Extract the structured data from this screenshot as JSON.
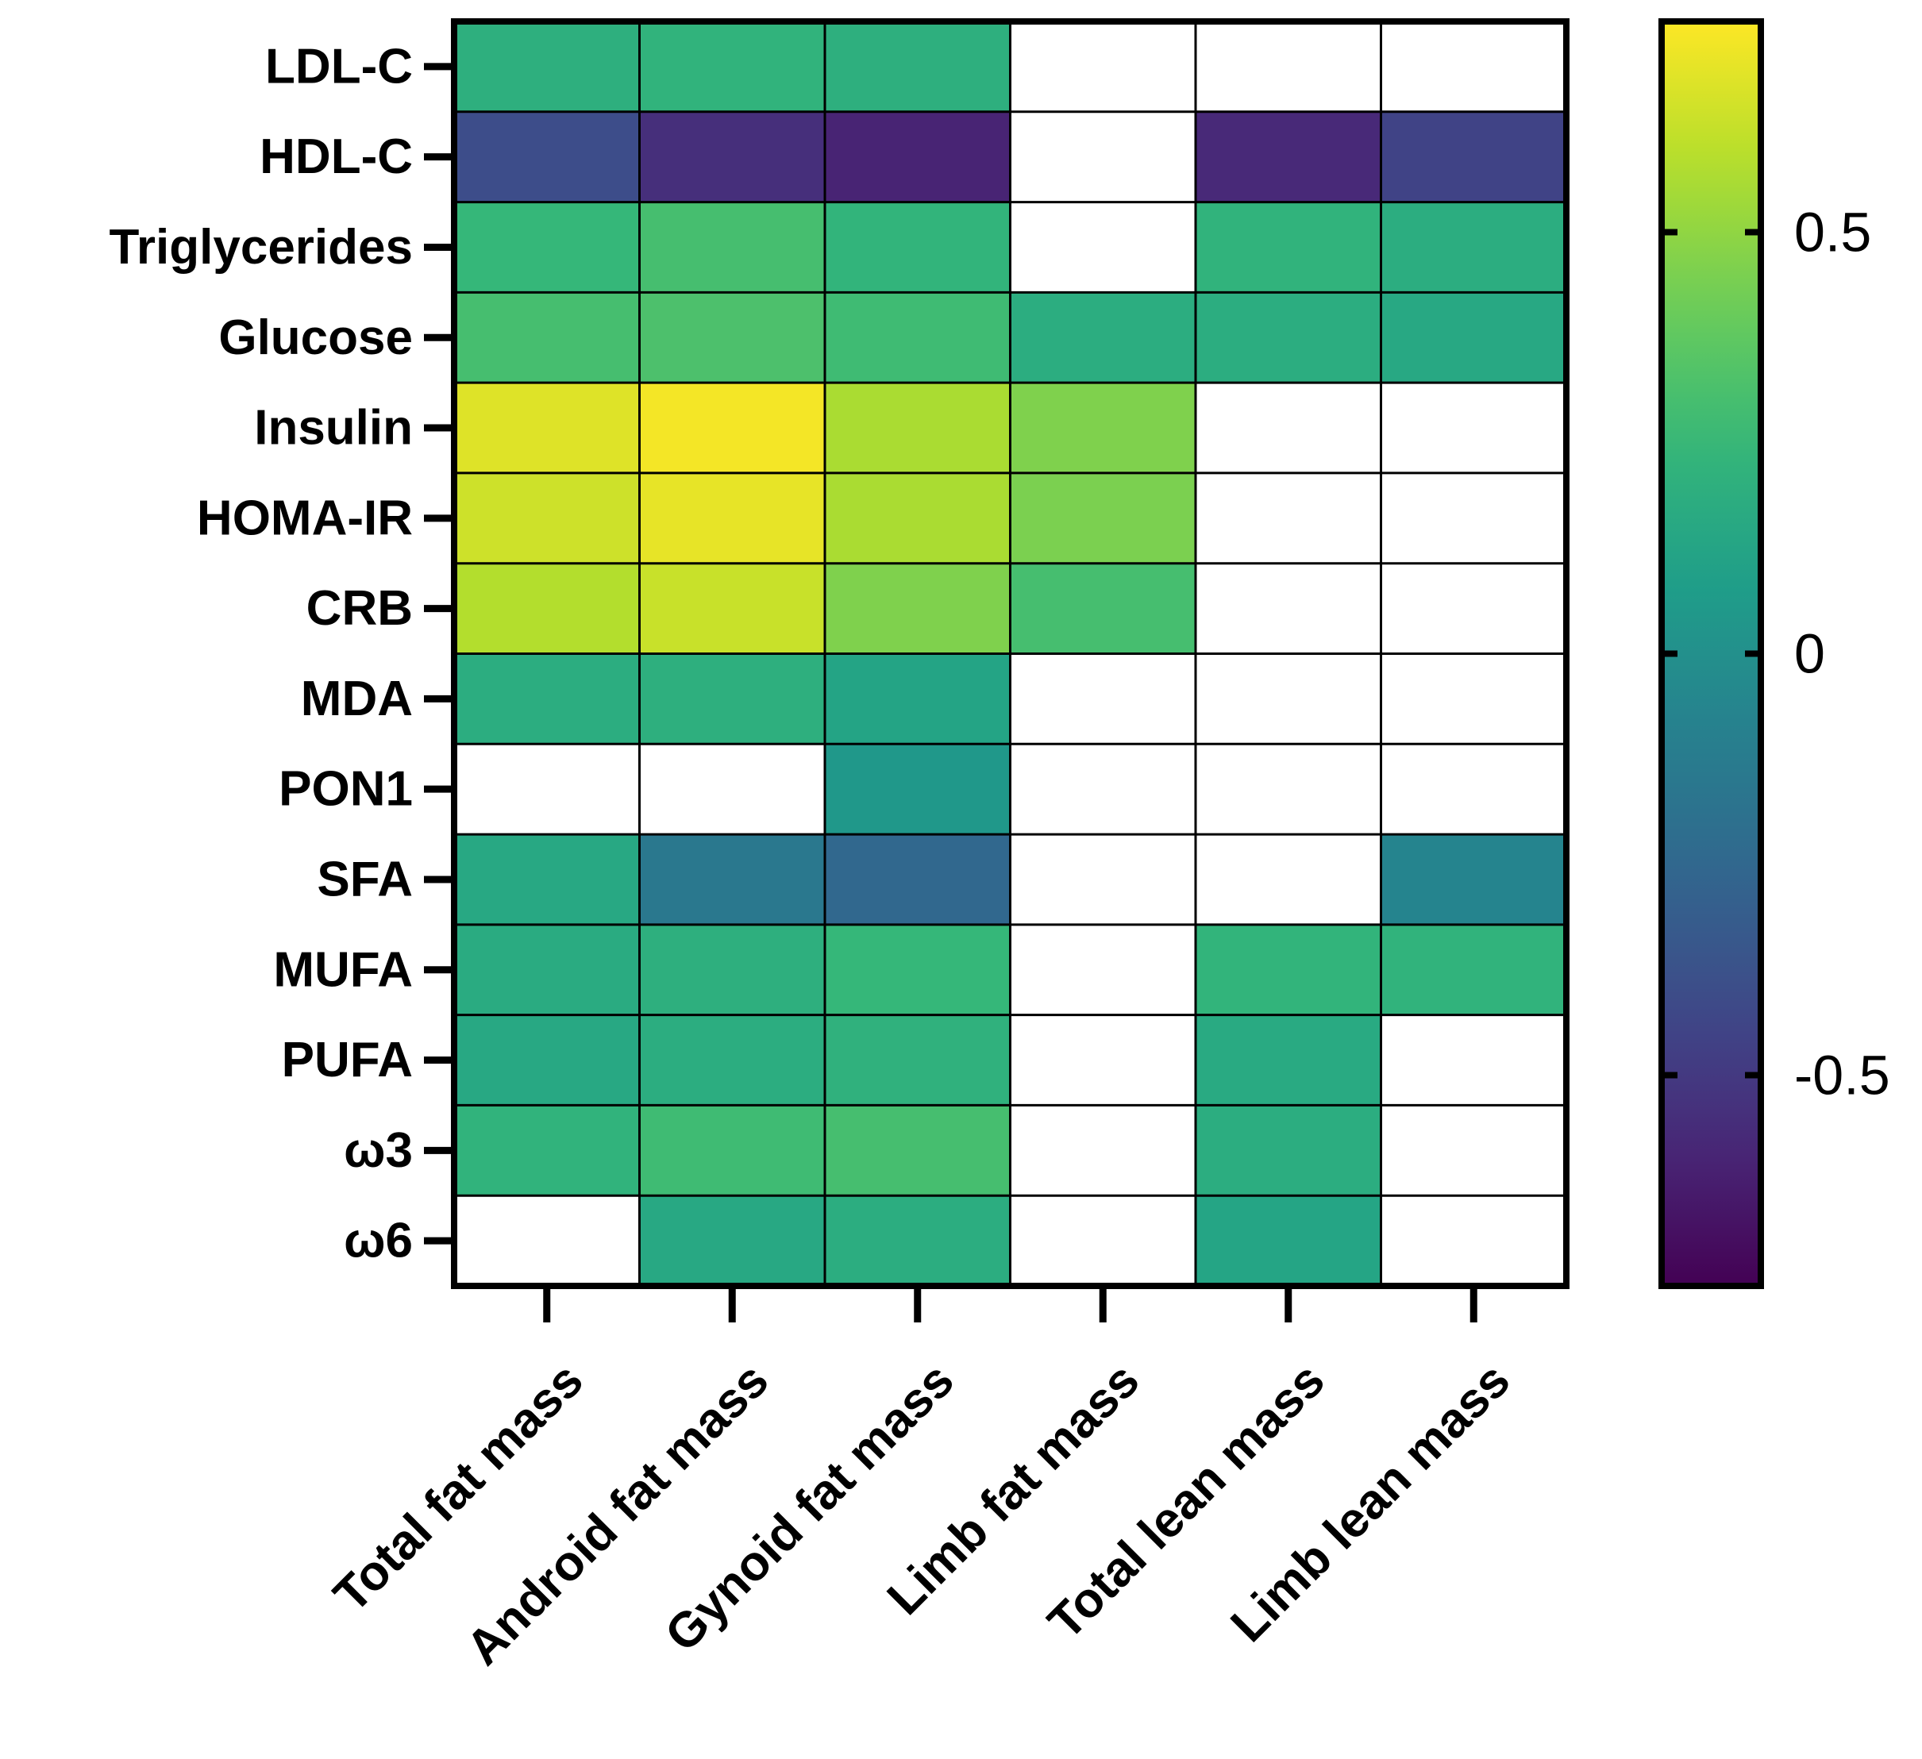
{
  "chart_data": {
    "type": "heatmap",
    "title": "",
    "rows": [
      "LDL-C",
      "HDL-C",
      "Triglycerides",
      "Glucose",
      "Insulin",
      "HOMA-IR",
      "CRB",
      "MDA",
      "PON1",
      "SFA",
      "MUFA",
      "PUFA",
      "ω3",
      "ω6"
    ],
    "columns": [
      "Total fat mass",
      "Android fat mass",
      "Gynoid fat mass",
      "Limb fat mass",
      "Total lean mass",
      "Limb lean mass"
    ],
    "values": [
      [
        0.2,
        0.22,
        0.2,
        null,
        null,
        null
      ],
      [
        -0.4,
        -0.55,
        -0.6,
        null,
        -0.58,
        -0.45
      ],
      [
        0.25,
        0.3,
        0.23,
        null,
        0.22,
        0.18
      ],
      [
        0.3,
        0.32,
        0.28,
        0.18,
        0.18,
        0.15
      ],
      [
        0.68,
        0.73,
        0.56,
        0.46,
        null,
        null
      ],
      [
        0.64,
        0.7,
        0.56,
        0.45,
        null,
        null
      ],
      [
        0.58,
        0.63,
        0.46,
        0.3,
        null,
        null
      ],
      [
        0.18,
        0.2,
        0.12,
        null,
        null,
        null
      ],
      [
        null,
        null,
        0.05,
        null,
        null,
        null
      ],
      [
        0.15,
        -0.15,
        -0.25,
        null,
        null,
        -0.07
      ],
      [
        0.17,
        0.2,
        0.25,
        null,
        0.23,
        0.22
      ],
      [
        0.15,
        0.18,
        0.21,
        null,
        0.16,
        null
      ],
      [
        0.22,
        0.28,
        0.3,
        null,
        0.18,
        null
      ],
      [
        null,
        0.15,
        0.18,
        null,
        0.13,
        null
      ]
    ],
    "colorscale": "viridis",
    "color_range": [
      -0.75,
      0.75
    ],
    "colorbar_ticks": [
      {
        "value": 0.5,
        "label": "0.5"
      },
      {
        "value": 0,
        "label": "0"
      },
      {
        "value": -0.5,
        "label": "-0.5"
      }
    ],
    "missing_color": "#ffffff"
  }
}
